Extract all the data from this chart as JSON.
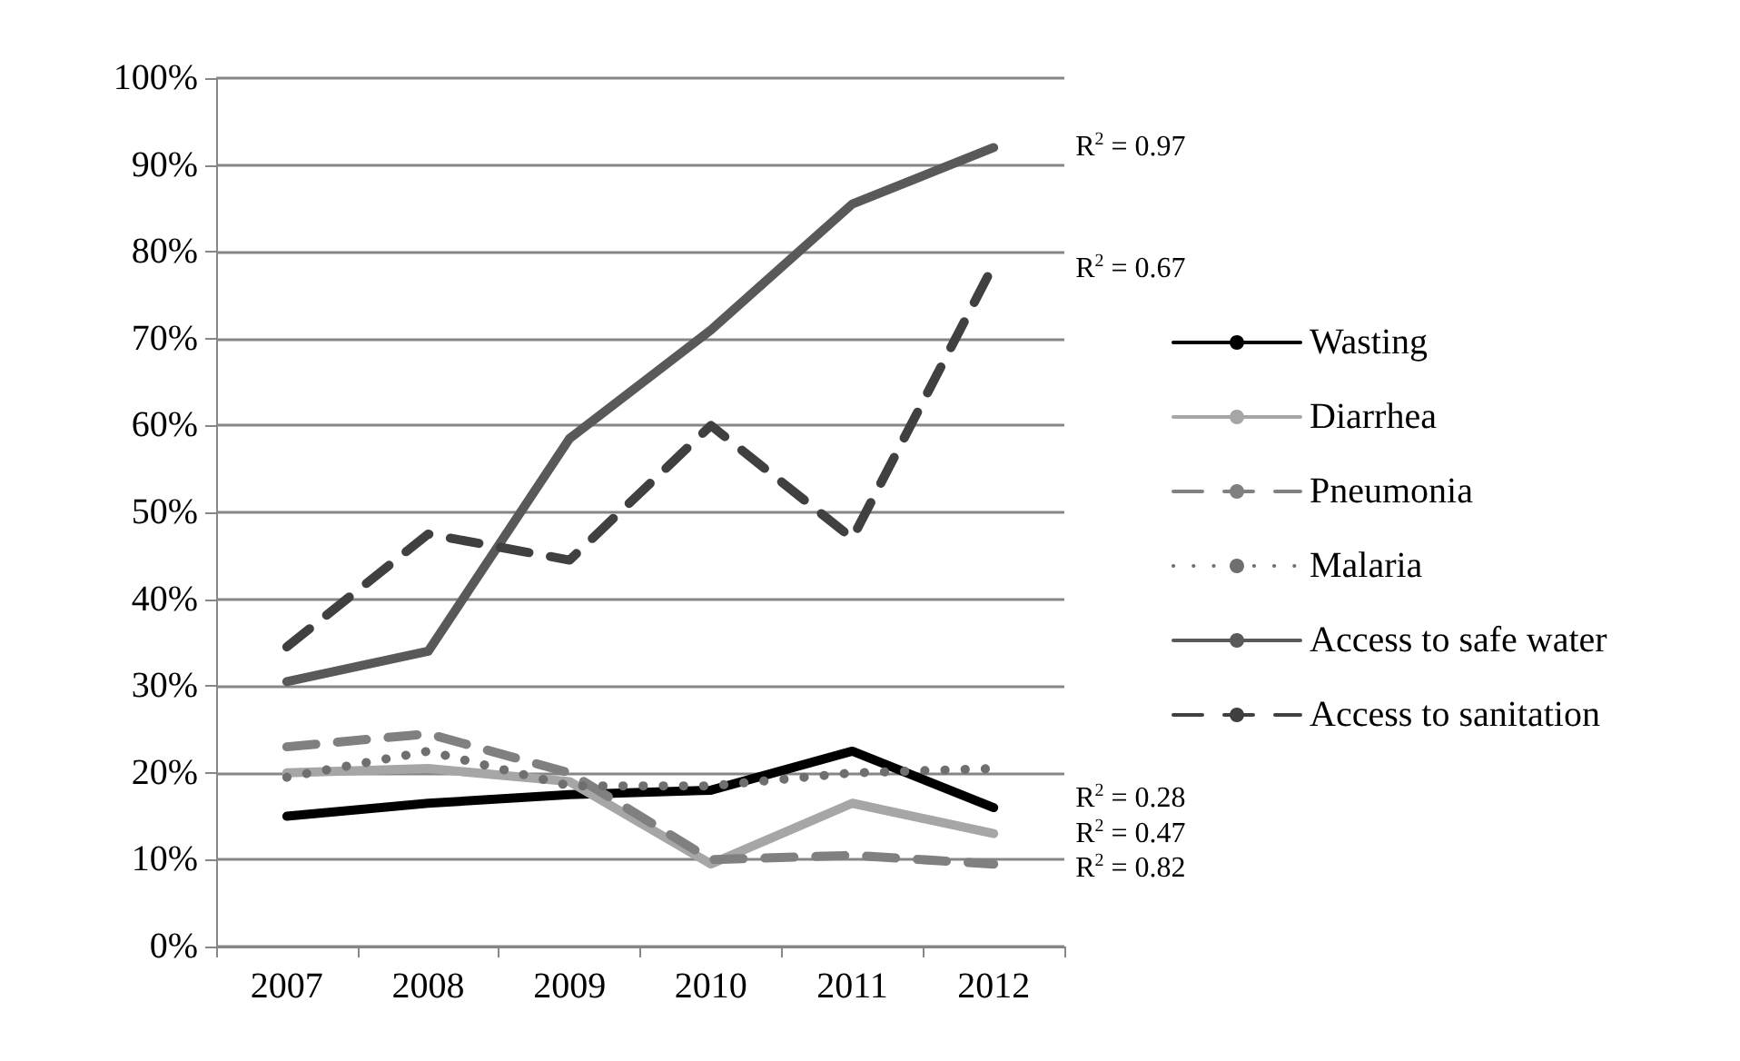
{
  "chart_data": {
    "type": "line",
    "categories": [
      "2007",
      "2008",
      "2009",
      "2010",
      "2011",
      "2012"
    ],
    "series": [
      {
        "name": "Wasting",
        "color": "#000000",
        "line_style": "solid",
        "values": [
          15,
          16.5,
          17.5,
          18,
          22.5,
          16
        ]
      },
      {
        "name": "Diarrhea",
        "color": "#a6a6a6",
        "line_style": "solid",
        "values": [
          20,
          20.5,
          19,
          9.5,
          16.5,
          13
        ]
      },
      {
        "name": "Pneumonia",
        "color": "#808080",
        "line_style": "dashed",
        "values": [
          23,
          24.5,
          20,
          10,
          10.5,
          9.5
        ]
      },
      {
        "name": "Malaria",
        "color": "#6f6f6f",
        "line_style": "dotted",
        "values": [
          19.5,
          22.5,
          18.5,
          18.5,
          20,
          20.5
        ]
      },
      {
        "name": "Access to safe water",
        "color": "#595959",
        "line_style": "solid",
        "values": [
          30.5,
          34,
          58.5,
          71,
          85.5,
          92
        ]
      },
      {
        "name": "Access to sanitation",
        "color": "#404040",
        "line_style": "dashed",
        "values": [
          34.5,
          47.5,
          44.5,
          60,
          47,
          78.5
        ]
      }
    ],
    "ylim": [
      0,
      100
    ],
    "yticks": [
      {
        "value": 0,
        "label": "0%"
      },
      {
        "value": 10,
        "label": "10%"
      },
      {
        "value": 20,
        "label": "20%"
      },
      {
        "value": 30,
        "label": "30%"
      },
      {
        "value": 40,
        "label": "40%"
      },
      {
        "value": 50,
        "label": "50%"
      },
      {
        "value": 60,
        "label": "60%"
      },
      {
        "value": 70,
        "label": "70%"
      },
      {
        "value": 80,
        "label": "80%"
      },
      {
        "value": 90,
        "label": "90%"
      },
      {
        "value": 100,
        "label": "100%"
      }
    ],
    "grid": "y",
    "legend": "right",
    "marker": "none",
    "annotations": [
      {
        "text": "R$^{2}$ = 0.97",
        "x": "2012",
        "y": 92
      },
      {
        "text": "R$^{2}$ = 0.67",
        "x": "2012",
        "y": 78
      },
      {
        "text": "R$^{2}$ = 0.28",
        "x": "2012",
        "y": 17
      },
      {
        "text": "R$^{2}$ = 0.47",
        "x": "2012",
        "y": 13
      },
      {
        "text": "R$^{2}$ = 0.82",
        "x": "2012",
        "y": 9
      }
    ]
  }
}
